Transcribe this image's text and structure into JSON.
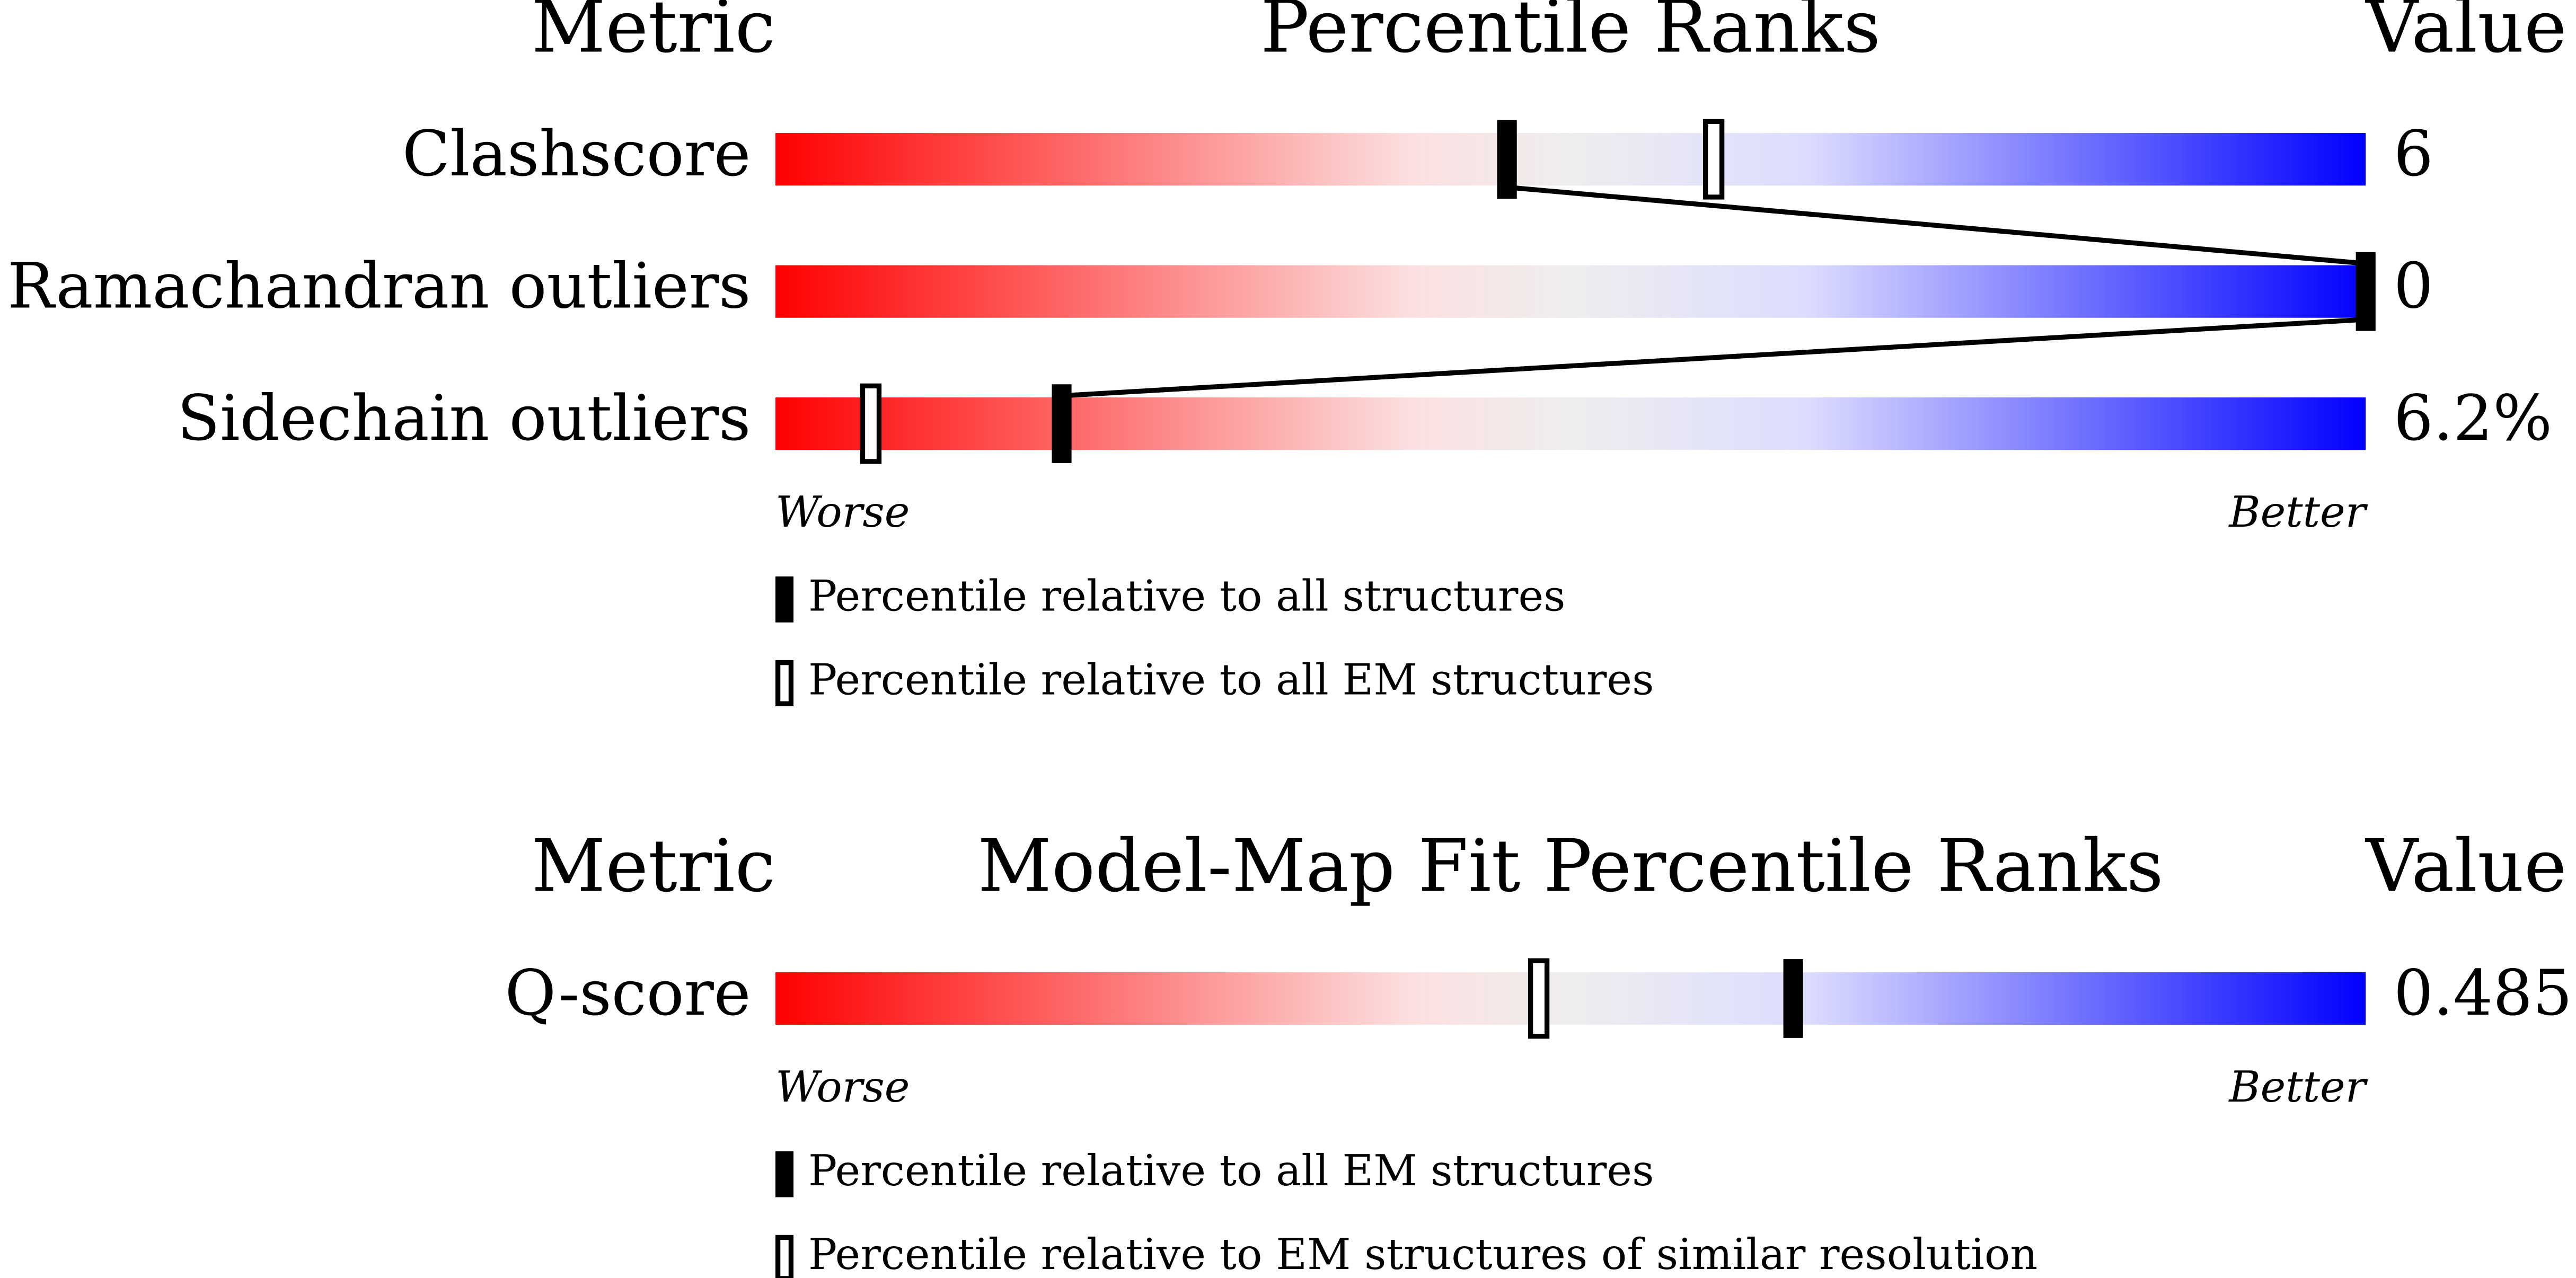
{
  "panels": [
    {
      "header": {
        "metric": "Metric",
        "title": "Percentile Ranks",
        "value": "Value"
      },
      "rows": [
        {
          "metric": "Clashscore",
          "value": 6,
          "percentile_filled": 46,
          "percentile_open": 59
        },
        {
          "metric": "Ramachandran outliers",
          "value": 0,
          "percentile_filled": 100
        },
        {
          "metric": "Sidechain outliers",
          "value": 6.2,
          "value_label": "6.2%",
          "percentile_filled": 18,
          "percentile_open": 6
        }
      ],
      "worse": "Worse",
      "better": "Better",
      "legend": {
        "filled": "Percentile relative to all structures",
        "open": "Percentile relative to all EM structures"
      }
    },
    {
      "header": {
        "metric": "Metric",
        "title": "Model-Map Fit Percentile Ranks",
        "value": "Value"
      },
      "rows": [
        {
          "metric": "Q-score",
          "value": 0.485,
          "percentile_filled": 64,
          "percentile_open": 48
        }
      ],
      "worse": "Worse",
      "better": "Better",
      "legend": {
        "filled": "Percentile relative to all EM structures",
        "open": "Percentile relative to EM structures of similar resolution"
      }
    }
  ]
}
